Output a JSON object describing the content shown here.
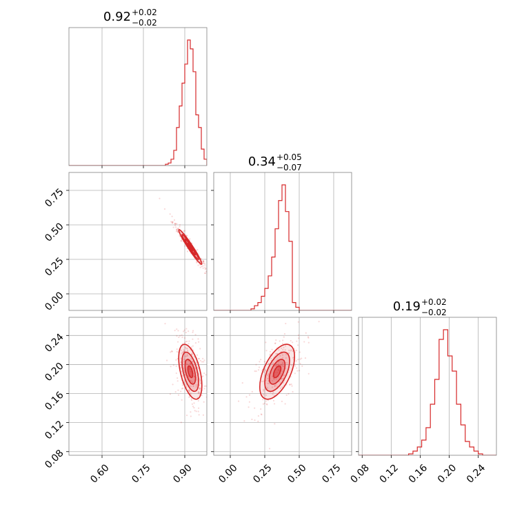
{
  "style": {
    "accent": "#d62728",
    "grid": "#b0b0b0",
    "frame": "#808080",
    "text": "#000000",
    "background": "#ffffff"
  },
  "chart_data": [
    {
      "type": "histogram",
      "panel": "p00",
      "title": {
        "value": "0.92",
        "plus": "+0.02",
        "minus": "−0.02"
      },
      "xlim": [
        0.48,
        0.98
      ],
      "grid": true,
      "x_ticks": [
        0.6,
        0.75,
        0.9
      ],
      "bins_x": [
        0.82,
        0.83,
        0.84,
        0.85,
        0.86,
        0.87,
        0.88,
        0.89,
        0.9,
        0.91,
        0.92,
        0.93,
        0.94,
        0.95,
        0.96,
        0.97,
        0.98
      ],
      "counts": [
        0.0,
        0.01,
        0.02,
        0.05,
        0.12,
        0.3,
        0.47,
        0.65,
        0.8,
        0.99,
        0.92,
        0.74,
        0.4,
        0.3,
        0.13,
        0.05,
        0.0
      ]
    },
    {
      "type": "histogram",
      "panel": "p11",
      "title": {
        "value": "0.34",
        "plus": "+0.05",
        "minus": "−0.07"
      },
      "xlim": [
        -0.12,
        0.88
      ],
      "grid": true,
      "x_ticks": [
        0.0,
        0.25,
        0.5,
        0.75
      ],
      "bins_x": [
        0.15,
        0.175,
        0.2,
        0.225,
        0.25,
        0.275,
        0.3,
        0.325,
        0.35,
        0.375,
        0.4,
        0.425,
        0.45,
        0.475
      ],
      "counts": [
        0.01,
        0.03,
        0.05,
        0.09,
        0.14,
        0.22,
        0.34,
        0.52,
        0.7,
        0.8,
        0.63,
        0.44,
        0.05,
        0.02
      ]
    },
    {
      "type": "histogram",
      "panel": "p22",
      "title": {
        "value": "0.19",
        "plus": "+0.02",
        "minus": "−0.02"
      },
      "xlim": [
        0.075,
        0.265
      ],
      "grid": true,
      "x_ticks": [
        0.08,
        0.12,
        0.16,
        0.2,
        0.24
      ],
      "bins_x": [
        0.144,
        0.15,
        0.156,
        0.162,
        0.168,
        0.174,
        0.18,
        0.186,
        0.192,
        0.198,
        0.204,
        0.21,
        0.216,
        0.222,
        0.228,
        0.234,
        0.24
      ],
      "counts": [
        0.01,
        0.03,
        0.06,
        0.11,
        0.2,
        0.37,
        0.55,
        0.84,
        0.91,
        0.72,
        0.61,
        0.37,
        0.22,
        0.1,
        0.06,
        0.03,
        0.01
      ]
    },
    {
      "type": "scatter-density",
      "panel": "p10",
      "xlim": [
        0.48,
        0.98
      ],
      "ylim": [
        -0.12,
        0.88
      ],
      "grid": true,
      "x_ticks": [
        0.6,
        0.75,
        0.9
      ],
      "y_ticks": [
        0.0,
        0.25,
        0.5,
        0.75
      ],
      "center": [
        0.92,
        0.34
      ],
      "spread": [
        0.02,
        0.06
      ],
      "correlation": -0.97
    },
    {
      "type": "scatter-density",
      "panel": "p20",
      "xlim": [
        0.48,
        0.98
      ],
      "ylim": [
        0.075,
        0.265
      ],
      "grid": true,
      "x_ticks": [
        0.6,
        0.75,
        0.9
      ],
      "y_ticks": [
        0.08,
        0.12,
        0.16,
        0.2,
        0.24
      ],
      "center": [
        0.92,
        0.19
      ],
      "spread": [
        0.02,
        0.018
      ],
      "correlation": -0.5
    },
    {
      "type": "scatter-density",
      "panel": "p21",
      "xlim": [
        -0.12,
        0.88
      ],
      "ylim": [
        0.075,
        0.265
      ],
      "grid": true,
      "x_ticks": [
        0.0,
        0.25,
        0.5,
        0.75
      ],
      "y_ticks": [
        0.08,
        0.12,
        0.16,
        0.2,
        0.24
      ],
      "center": [
        0.34,
        0.19
      ],
      "spread": [
        0.06,
        0.018
      ],
      "correlation": 0.55
    }
  ],
  "tick_labels": {
    "x_col0": [
      "0.60",
      "0.75",
      "0.90"
    ],
    "x_col1": [
      "0.00",
      "0.25",
      "0.50",
      "0.75"
    ],
    "x_col2": [
      "0.08",
      "0.12",
      "0.16",
      "0.20",
      "0.24"
    ],
    "y_row1": [
      "0.00",
      "0.25",
      "0.50",
      "0.75"
    ],
    "y_row2": [
      "0.08",
      "0.12",
      "0.16",
      "0.20",
      "0.24"
    ]
  }
}
